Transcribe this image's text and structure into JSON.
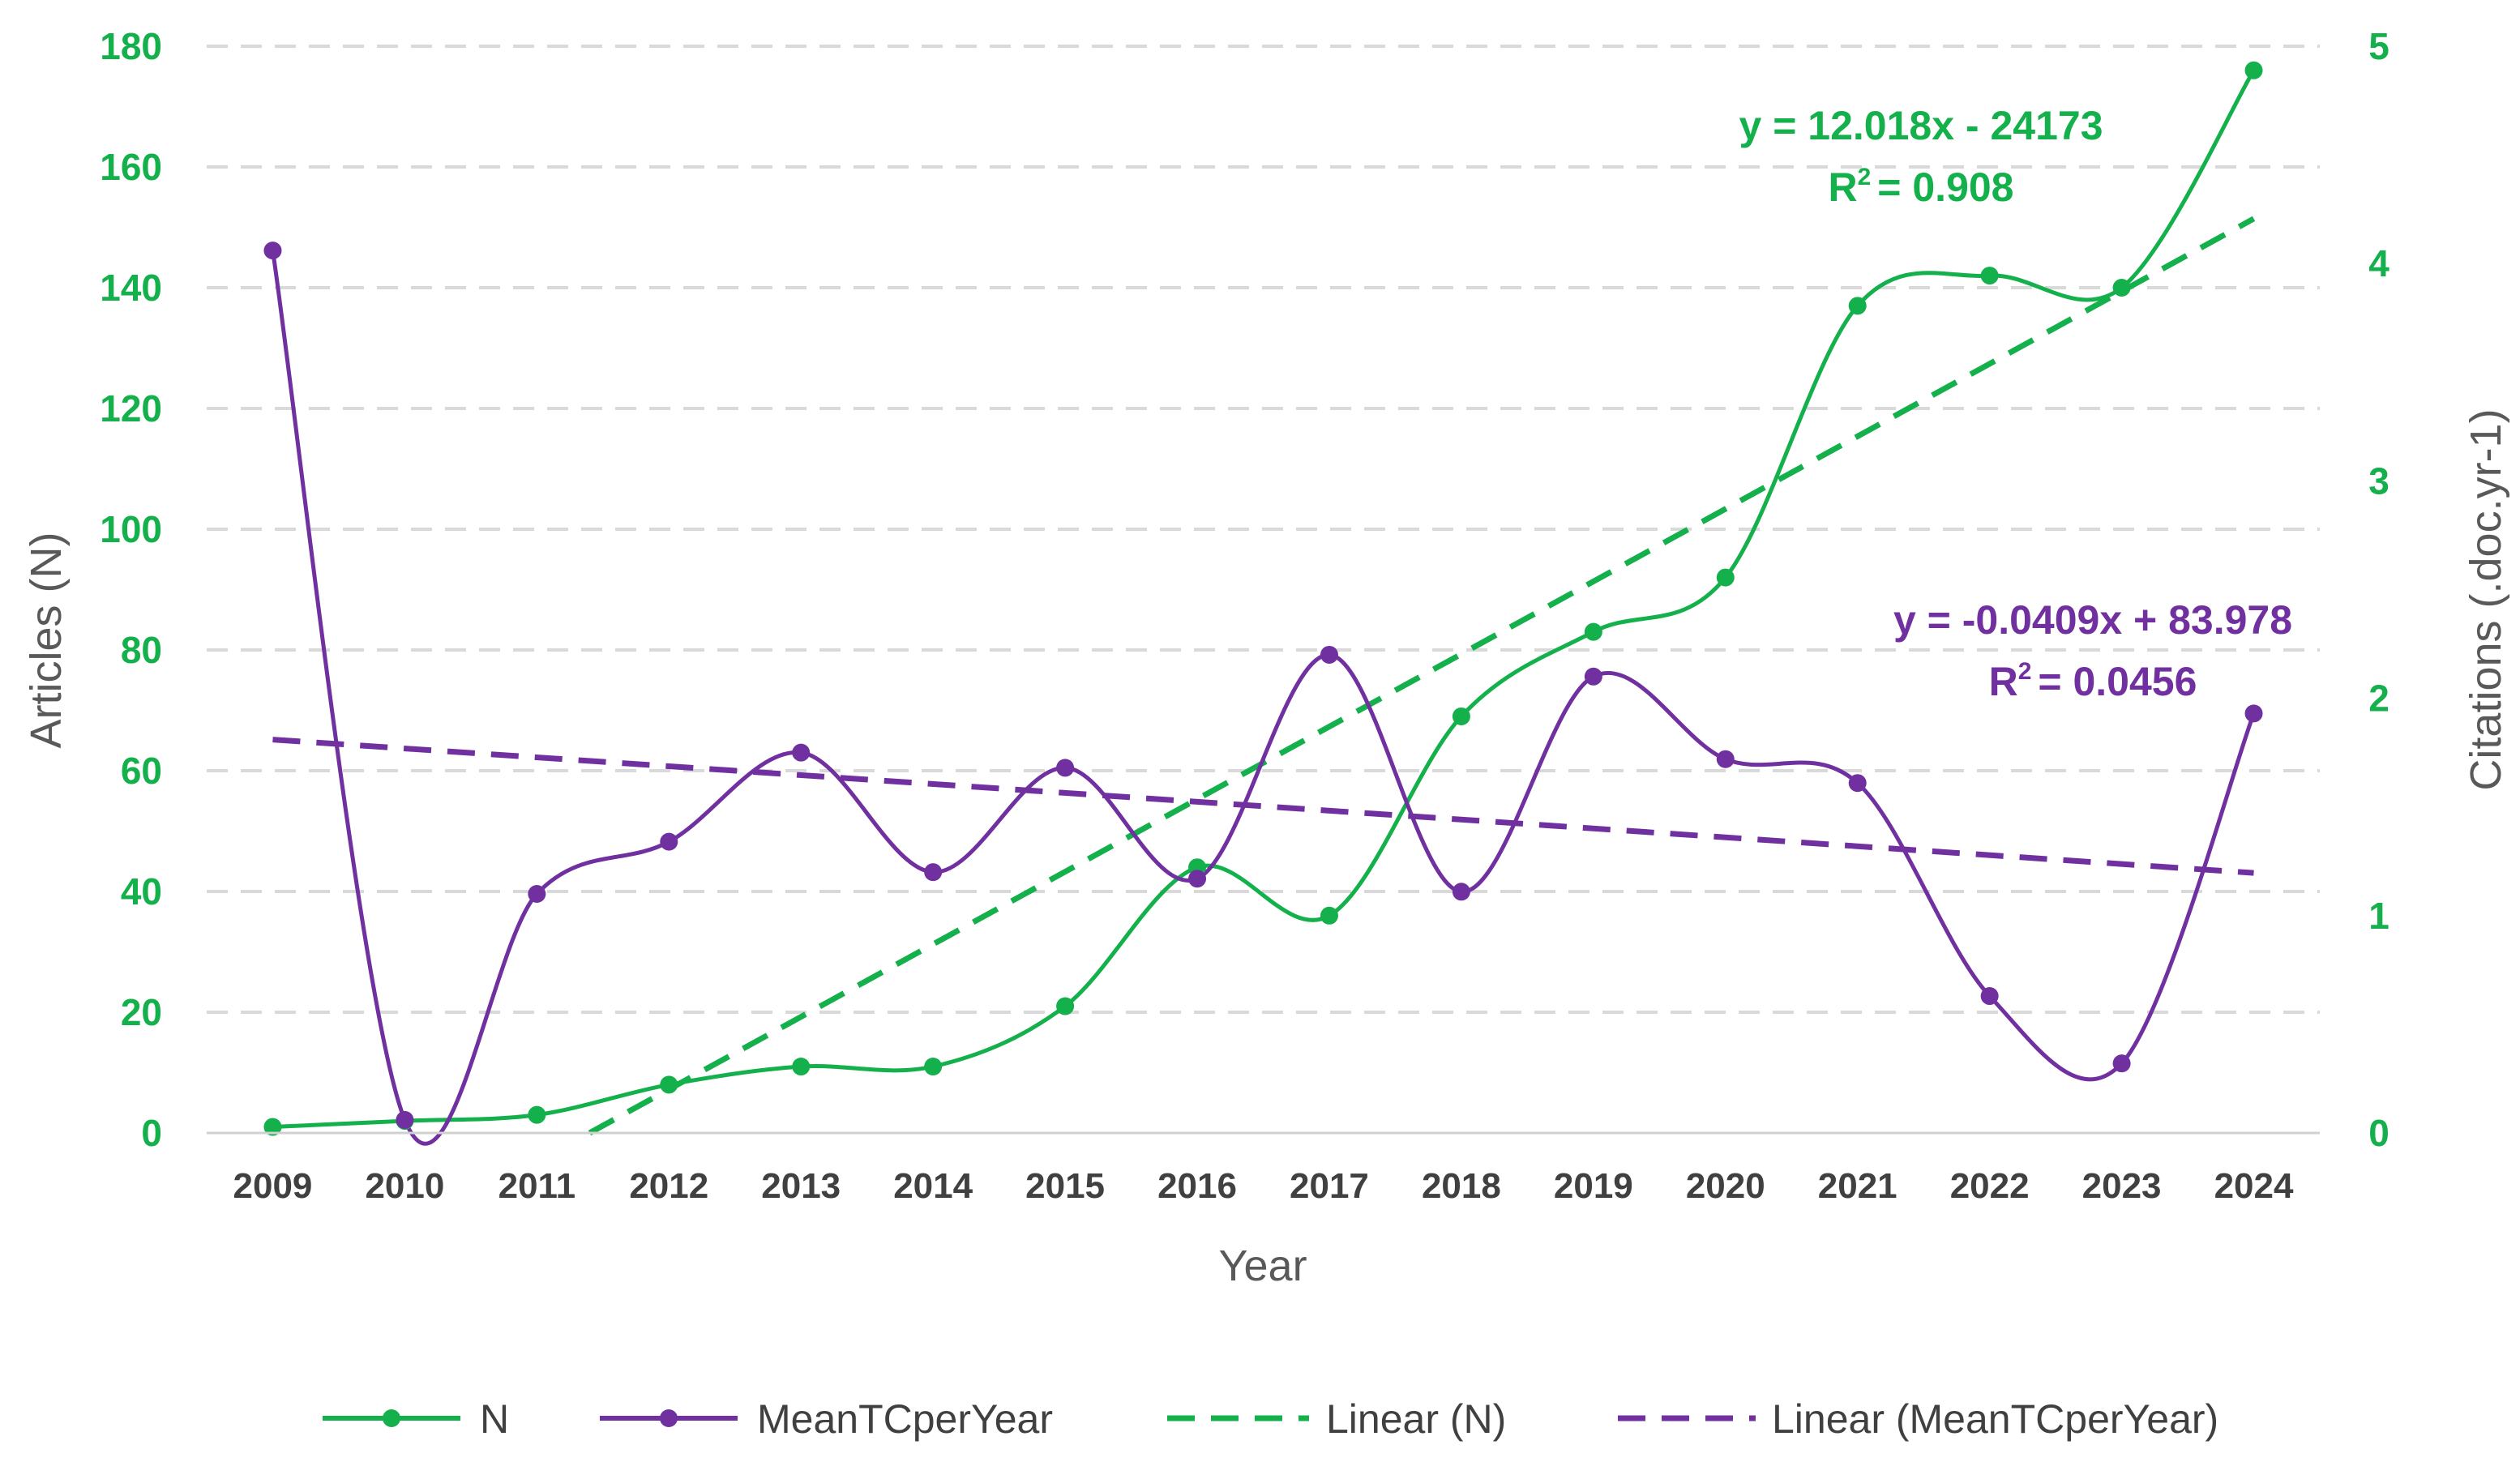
{
  "chart_data": {
    "type": "line",
    "title": "",
    "xlabel": "Year",
    "ylabel_left": "Articles (N)",
    "ylabel_right": "Citations (.doc.yr-1)",
    "ylim_left": [
      0,
      180
    ],
    "ylim_right": [
      0,
      5
    ],
    "yticks_left": [
      "0",
      "20",
      "40",
      "60",
      "80",
      "100",
      "120",
      "140",
      "160",
      "180"
    ],
    "yticks_right": [
      "0",
      "1",
      "2",
      "3",
      "4",
      "5"
    ],
    "grid": "horizontal dashed",
    "legend_position": "bottom",
    "x": [
      "2009",
      "2010",
      "2011",
      "2012",
      "2013",
      "2014",
      "2015",
      "2016",
      "2017",
      "2018",
      "2019",
      "2020",
      "2021",
      "2022",
      "2023",
      "2024"
    ],
    "series": [
      {
        "name": "N",
        "axis": "left",
        "color": "#14b04c",
        "smooth": true,
        "values": [
          1,
          2,
          3,
          8,
          11,
          11,
          21,
          44,
          36,
          69,
          83,
          92,
          137,
          142,
          140,
          176
        ]
      },
      {
        "name": "MeanTCperYear",
        "axis": "right",
        "color": "#7030a0",
        "smooth": true,
        "values": [
          4.06,
          0.06,
          1.1,
          1.34,
          1.75,
          1.2,
          1.68,
          1.17,
          2.2,
          1.11,
          2.1,
          1.72,
          1.61,
          0.63,
          0.32,
          1.93
        ]
      }
    ],
    "trendlines": [
      {
        "name": "Linear (N)",
        "of": "N",
        "axis": "left",
        "color": "#14b04c",
        "slope": 12.018,
        "intercept": -24173,
        "equation": "y = 12.018x - 24173",
        "r2_prefix": "R",
        "r2_value": "= 0.908"
      },
      {
        "name": "Linear (MeanTCperYear)",
        "of": "MeanTCperYear",
        "axis": "right",
        "color": "#7030a0",
        "slope": -0.0409,
        "intercept": 83.978,
        "equation": "y = -0.0409x + 83.978",
        "r2_prefix": "R",
        "r2_value": "= 0.0456"
      }
    ]
  }
}
